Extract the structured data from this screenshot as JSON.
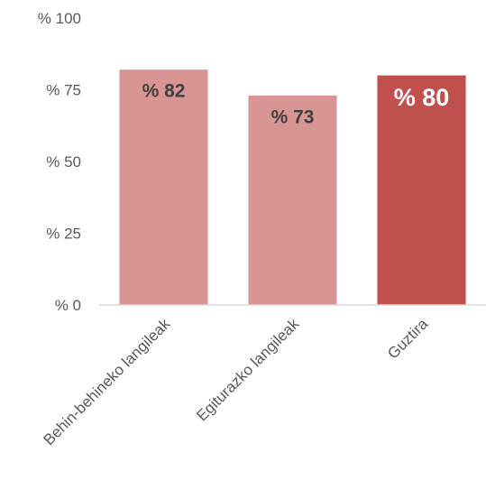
{
  "chart_data": {
    "type": "bar",
    "categories": [
      "Behin-behineko langileak",
      "Egiturazko langileak",
      "Guztira"
    ],
    "values": [
      82,
      73,
      80
    ],
    "data_labels": [
      "% 82",
      "% 73",
      "% 80"
    ],
    "title": "",
    "xlabel": "",
    "ylabel": "",
    "ylim": [
      0,
      100
    ],
    "yticks": [
      0,
      25,
      50,
      75,
      100
    ],
    "ytick_labels": [
      "% 0",
      "% 25",
      "% 50",
      "% 75",
      "% 100"
    ],
    "grid": false,
    "legend": "none",
    "colors": {
      "bars": [
        "#d99594",
        "#d99594",
        "#c0504d"
      ],
      "labels": [
        "#404040",
        "#404040",
        "#ffffff"
      ],
      "axis": "#d9d9d9",
      "tick_text": "#595959"
    }
  }
}
